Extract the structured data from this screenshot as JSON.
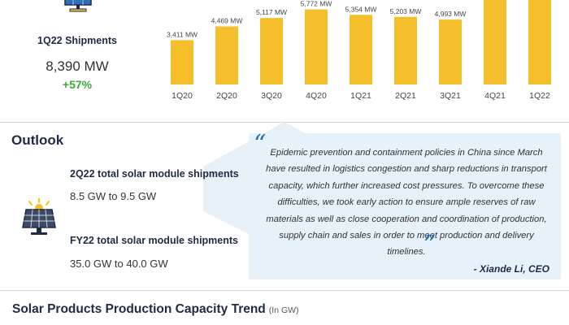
{
  "shipments": {
    "title": "1Q22 Shipments",
    "value": "8,390 MW",
    "growth": "+57%",
    "icon": "solar-panel-monitor-icon"
  },
  "chart_data": {
    "type": "bar",
    "categories": [
      "1Q20",
      "2Q20",
      "3Q20",
      "4Q20",
      "1Q21",
      "2Q21",
      "3Q21",
      "4Q21",
      "1Q22"
    ],
    "values": [
      3411,
      4469,
      5117,
      5772,
      5354,
      5203,
      4993,
      null,
      null
    ],
    "value_labels": [
      "3,411 MW",
      "4,469 MW",
      "5,117 MW",
      "5,772 MW",
      "5,354 MW",
      "5,203 MW",
      "4,993 MW",
      "",
      ""
    ],
    "bar_color": "#f5be2b",
    "ylim": [
      0,
      6000
    ]
  },
  "outlook": {
    "title": "Outlook",
    "q2_label": "2Q22 total solar module shipments",
    "q2_value": "8.5 GW to 9.5 GW",
    "fy_label": "FY22 total solar module shipments",
    "fy_value": "35.0 GW to 40.0 GW",
    "icon": "solar-module-icon"
  },
  "quote": {
    "text": "Epidemic prevention and containment policies in China since March have resulted in logistics congestion and sharp reductions in transport capacity, which further increased cost pressures. To overcome these difficulties, we took early action to ensure ample reserves of raw materials as well as close cooperation and coordination of production, supply chain and sales in order to meet production and delivery timelines.",
    "author": "- Xiande Li, CEO",
    "accent": "#1f6fb5",
    "background": "#e7f1f9"
  },
  "capacity": {
    "title": "Solar Products Production Capacity Trend",
    "unit": "(In GW)"
  }
}
